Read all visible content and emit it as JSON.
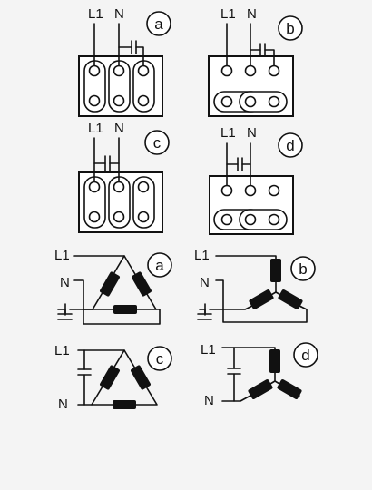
{
  "labels": {
    "line": "L1",
    "neutral": "N"
  },
  "badges": {
    "a": "a",
    "b": "b",
    "c": "c",
    "d": "d"
  }
}
